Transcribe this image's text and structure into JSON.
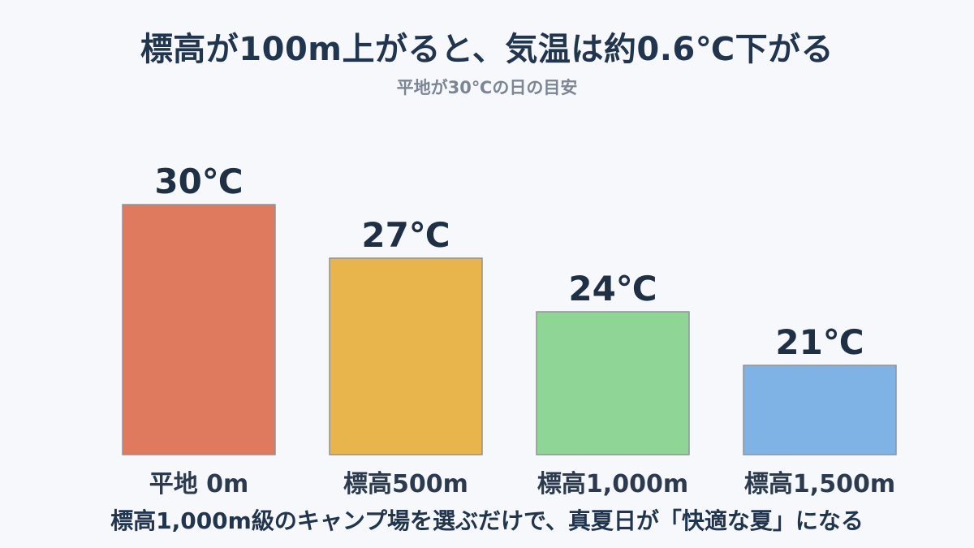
{
  "title": "標高が100m上がると、気温は約0.6℃下がる",
  "subtitle": "平地が30℃の日の目安",
  "note": "標高1,000m級のキャンプ場を選ぶだけで、真夏日が「快適な夏」になる",
  "chart_data": {
    "type": "bar",
    "categories": [
      "平地 0m",
      "標高500m",
      "標高1,000m",
      "標高1,500m"
    ],
    "values": [
      30,
      27,
      24,
      21
    ],
    "value_labels": [
      "30℃",
      "27℃",
      "24℃",
      "21℃"
    ],
    "colors": [
      "#df7a5e",
      "#e8b44c",
      "#8fd596",
      "#7fb2e5"
    ],
    "title": "標高が100m上がると、気温は約0.6℃下がる",
    "subtitle": "平地が30℃の日の目安",
    "xlabel": "",
    "ylabel": "",
    "ylim": [
      16,
      30
    ],
    "grid": false,
    "legend": "none"
  }
}
